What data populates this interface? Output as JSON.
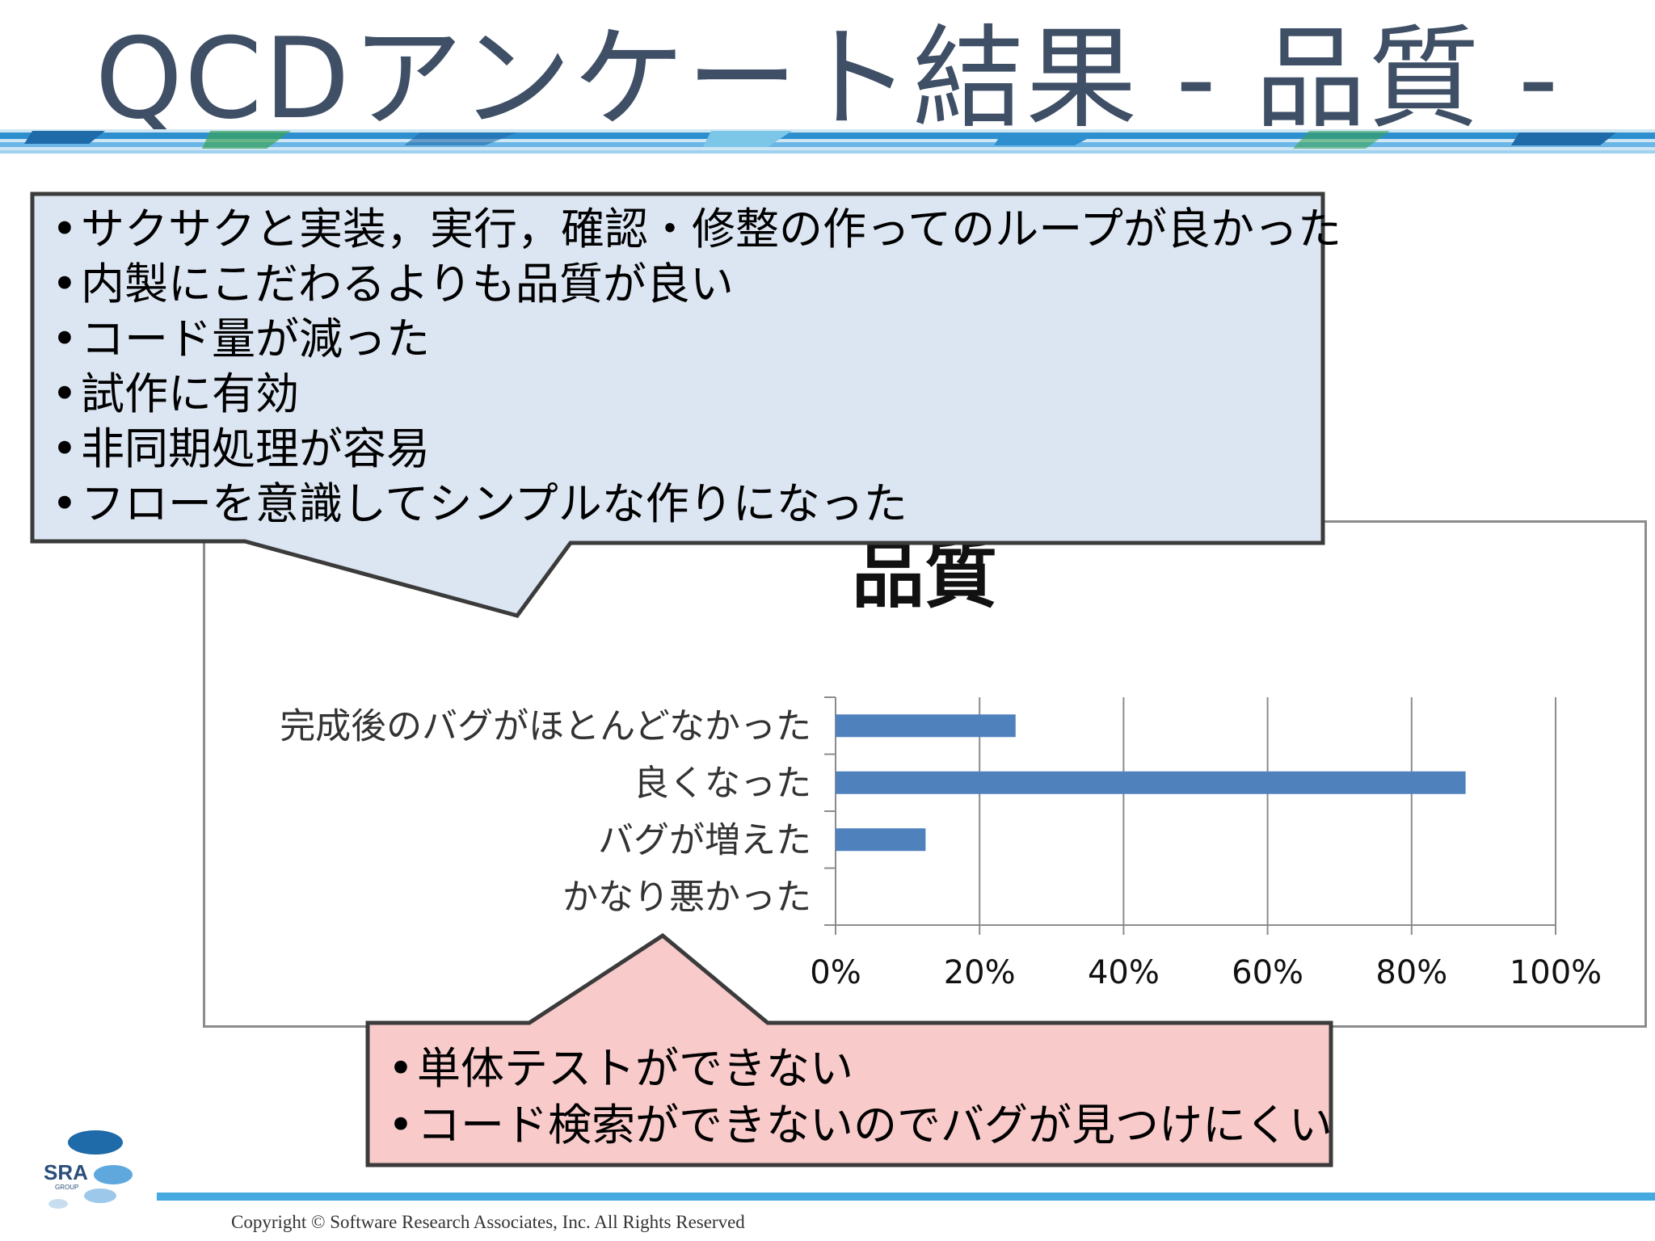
{
  "title": "QCDアンケート結果 - 品質 -",
  "positive_comments": [
    "サクサクと実装，実行，確認・修整の作ってのループが良かった",
    "内製にこだわるよりも品質が良い",
    "コード量が減った",
    "試作に有効",
    "非同期処理が容易",
    "フローを意識してシンプルな作りになった"
  ],
  "negative_comments": [
    "単体テストができない",
    "コード検索ができないのでバグが見つけにくい"
  ],
  "chart_data": {
    "type": "bar",
    "orientation": "horizontal",
    "title": "品質",
    "categories": [
      "完成後のバグがほとんどなかった",
      "良くなった",
      "バグが増えた",
      "かなり悪かった"
    ],
    "values": [
      25,
      87.5,
      12.5,
      0
    ],
    "xlim": [
      0,
      100
    ],
    "xticks": [
      "0%",
      "20%",
      "40%",
      "60%",
      "80%",
      "100%"
    ],
    "grid": true,
    "bar_color": "#4f81bd"
  },
  "colors": {
    "title": "#3f4f66",
    "blue_callout": "#dce6f2",
    "red_callout": "#f9caca",
    "accent_line": "#45aadf"
  },
  "logo": {
    "text": "SRA",
    "subtext": "GROUP"
  },
  "copyright": "Copyright © Software Research Associates, Inc. All Rights Reserved"
}
